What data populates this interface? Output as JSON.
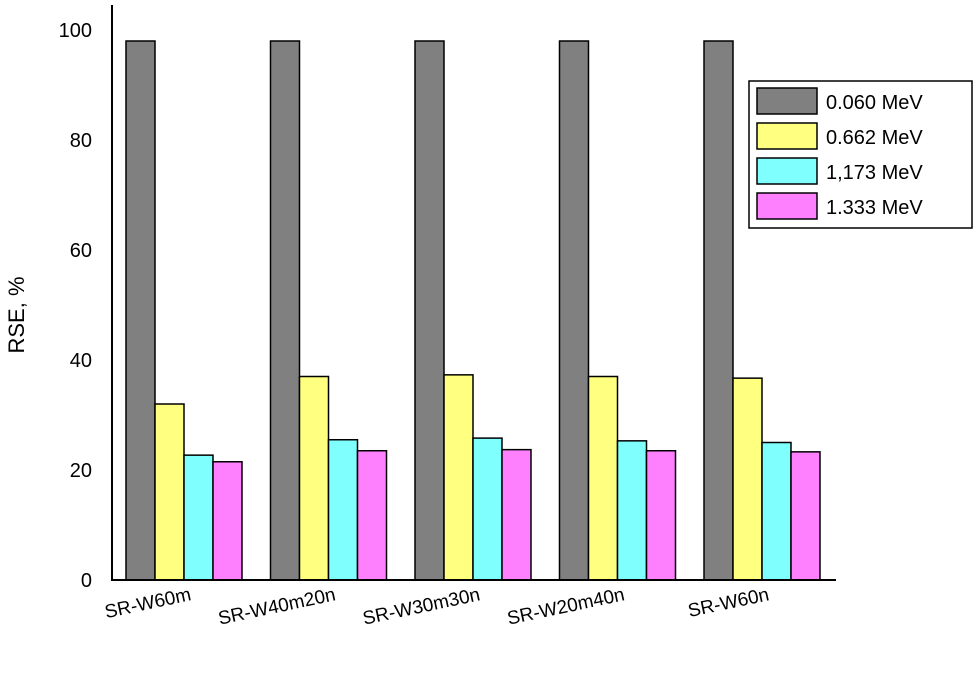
{
  "chart_data": {
    "type": "bar",
    "title": "",
    "xlabel": "",
    "ylabel": "RSE, %",
    "ylim": [
      0,
      100
    ],
    "yticks": [
      "0",
      "20",
      "40",
      "60",
      "80",
      "100"
    ],
    "grid": false,
    "legend_position": "top-right",
    "categories": [
      "SR-W60m",
      "SR-W40m20n",
      "SR-W30m30n",
      "SR-W20m40n",
      "SR-W60n"
    ],
    "series": [
      {
        "name": "0.060 MeV",
        "color": "#808080",
        "values": [
          98,
          98,
          98,
          98,
          98
        ]
      },
      {
        "name": "0.662 MeV",
        "color": "#ffff80",
        "values": [
          32,
          37,
          37.3,
          37,
          36.7
        ]
      },
      {
        "name": "1,173 MeV",
        "color": "#80ffff",
        "values": [
          22.7,
          25.5,
          25.8,
          25.3,
          25
        ]
      },
      {
        "name": "1.333 MeV",
        "color": "#ff80ff",
        "values": [
          21.5,
          23.5,
          23.7,
          23.5,
          23.3
        ]
      }
    ]
  }
}
